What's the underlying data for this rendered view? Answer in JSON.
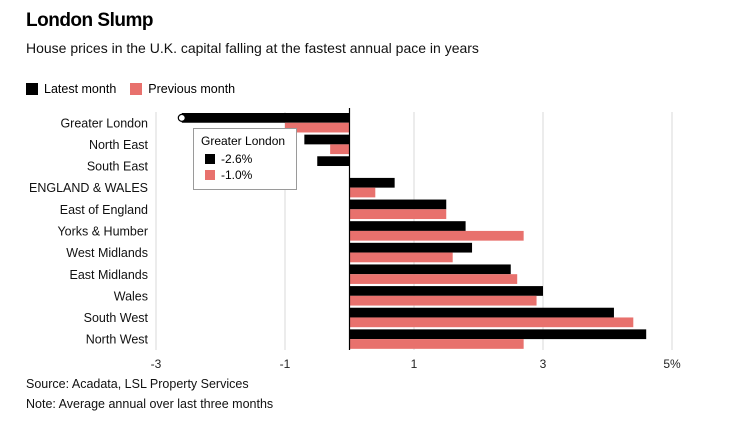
{
  "header": {
    "title": "London Slump",
    "subtitle": "House prices in the U.K. capital falling at the fastest annual pace in years"
  },
  "legend": {
    "latest": "Latest month",
    "previous": "Previous month"
  },
  "tooltip": {
    "title": "Greater London",
    "latest_value": "-2.6%",
    "previous_value": "-1.0%"
  },
  "footer": {
    "source": "Source: Acadata, LSL Property Services",
    "note": "Note: Average annual over last three months"
  },
  "colors": {
    "latest": "#000000",
    "previous": "#e8716d",
    "grid": "#d9d9d9"
  },
  "chart_data": {
    "type": "bar",
    "orientation": "horizontal",
    "categories": [
      "Greater London",
      "North East",
      "South East",
      "ENGLAND & WALES",
      "East of England",
      "Yorks & Humber",
      "West Midlands",
      "East Midlands",
      "Wales",
      "South West",
      "North West"
    ],
    "series": [
      {
        "name": "Latest month",
        "values": [
          -2.6,
          -0.7,
          -0.5,
          0.7,
          1.5,
          1.8,
          1.9,
          2.5,
          3.0,
          4.1,
          4.6
        ]
      },
      {
        "name": "Previous month",
        "values": [
          -1.0,
          -0.3,
          0.0,
          0.4,
          1.5,
          2.7,
          1.6,
          2.6,
          2.9,
          4.4,
          2.7
        ]
      }
    ],
    "xlim": [
      -3,
      5
    ],
    "x_ticks": [
      -3,
      -1,
      1,
      3,
      5
    ],
    "x_tick_labels": [
      "-3",
      "-1",
      "1",
      "3",
      "5%"
    ],
    "grid": true,
    "legend": "top-left"
  }
}
